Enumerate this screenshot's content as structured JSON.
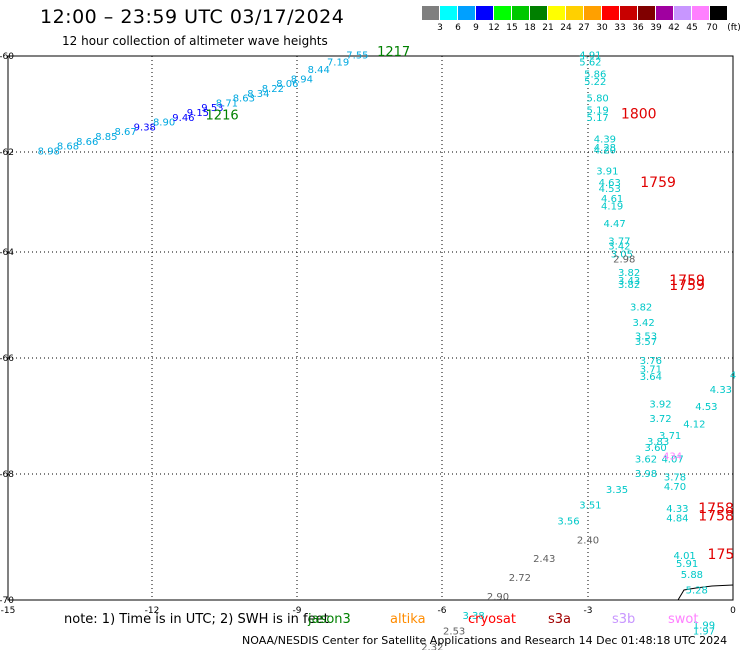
{
  "header": {
    "title": "12:00 – 23:59 UTC 03/17/2024",
    "subtitle": "12 hour collection of altimeter wave heights"
  },
  "legend": {
    "colors": [
      "#7f7f7f",
      "#00ffff",
      "#00a0ff",
      "#0000ff",
      "#00ff00",
      "#00c800",
      "#008000",
      "#ffff00",
      "#ffd000",
      "#ffa000",
      "#ff0000",
      "#c80000",
      "#800000",
      "#a000a0",
      "#c896ff",
      "#ff80ff",
      "#000000"
    ],
    "labels": [
      "3",
      "6",
      "9",
      "12",
      "15",
      "18",
      "21",
      "24",
      "27",
      "30",
      "33",
      "36",
      "39",
      "42",
      "45",
      "70"
    ],
    "unit": "(ft)"
  },
  "axes": {
    "x_ticks": [
      "-15",
      "-12",
      "-9",
      "-6",
      "-3",
      "0"
    ],
    "y_ticks": [
      "-60",
      "-62",
      "-64",
      "-66",
      "-68",
      "-70"
    ]
  },
  "note": {
    "prefix": "note: 1) Time is in UTC; 2) SWH is in feet",
    "satellites": [
      {
        "name": "jason3",
        "color": "#008000"
      },
      {
        "name": "altika",
        "color": "#ff8c00"
      },
      {
        "name": "cryosat",
        "color": "#ff0000"
      },
      {
        "name": "s3a",
        "color": "#a00000"
      },
      {
        "name": "s3b",
        "color": "#c896ff"
      },
      {
        "name": "swot",
        "color": "#ff80ff"
      }
    ]
  },
  "credit": "NOAA/NESDIS Center for Satellite Applications and Research   14 Dec 01:48:18 UTC 2024",
  "map": {
    "coast_color": "#000000",
    "track_colors": {
      "cyan": "#00c8c8",
      "teal": "#00a8e0",
      "blue": "#0000ff",
      "gray": "#606060",
      "pink": "#ff80ff",
      "green": "#008000",
      "red": "#e00000"
    }
  },
  "chart_data": {
    "type": "scatter",
    "xlim": [
      -15,
      0
    ],
    "ylim": [
      -70,
      -60
    ],
    "labels": [
      {
        "t": "8.98",
        "c": "teal",
        "lon": -14.15,
        "lat": -62.05
      },
      {
        "t": "8.68",
        "c": "teal",
        "lon": -13.75,
        "lat": -61.95
      },
      {
        "t": "8.66",
        "c": "teal",
        "lon": -13.35,
        "lat": -61.85
      },
      {
        "t": "8.85",
        "c": "teal",
        "lon": -12.95,
        "lat": -61.75
      },
      {
        "t": "8.67",
        "c": "teal",
        "lon": -12.55,
        "lat": -61.65
      },
      {
        "t": "9.38",
        "c": "blue",
        "lon": -12.15,
        "lat": -61.55
      },
      {
        "t": "8.90",
        "c": "teal",
        "lon": -11.75,
        "lat": -61.45
      },
      {
        "t": "9.46",
        "c": "blue",
        "lon": -11.35,
        "lat": -61.35
      },
      {
        "t": "9.15",
        "c": "blue",
        "lon": -11.05,
        "lat": -61.25
      },
      {
        "t": "9.53",
        "c": "blue",
        "lon": -10.75,
        "lat": -61.15
      },
      {
        "t": "8.71",
        "c": "teal",
        "lon": -10.45,
        "lat": -61.05
      },
      {
        "t": "8.63",
        "c": "teal",
        "lon": -10.1,
        "lat": -60.95
      },
      {
        "t": "8.34",
        "c": "teal",
        "lon": -9.8,
        "lat": -60.85
      },
      {
        "t": "8.22",
        "c": "teal",
        "lon": -9.5,
        "lat": -60.75
      },
      {
        "t": "8.06",
        "c": "teal",
        "lon": -9.2,
        "lat": -60.65
      },
      {
        "t": "8.94",
        "c": "teal",
        "lon": -8.9,
        "lat": -60.55
      },
      {
        "t": "8.44",
        "c": "teal",
        "lon": -8.55,
        "lat": -60.35
      },
      {
        "t": "7.19",
        "c": "teal",
        "lon": -8.15,
        "lat": -60.2
      },
      {
        "t": "7.55",
        "c": "teal",
        "lon": -7.75,
        "lat": -60.05
      },
      {
        "t": "4.91",
        "c": "cyan",
        "lon": -2.95,
        "lat": -60.05
      },
      {
        "t": "5.62",
        "c": "cyan",
        "lon": -2.95,
        "lat": -60.2
      },
      {
        "t": "5.86",
        "c": "cyan",
        "lon": -2.85,
        "lat": -60.45
      },
      {
        "t": "5.22",
        "c": "cyan",
        "lon": -2.85,
        "lat": -60.6
      },
      {
        "t": "5.80",
        "c": "cyan",
        "lon": -2.8,
        "lat": -60.95
      },
      {
        "t": "5.19",
        "c": "cyan",
        "lon": -2.8,
        "lat": -61.2
      },
      {
        "t": "5.17",
        "c": "cyan",
        "lon": -2.8,
        "lat": -61.35
      },
      {
        "t": "4.39",
        "c": "cyan",
        "lon": -2.65,
        "lat": -61.8
      },
      {
        "t": "4.28",
        "c": "cyan",
        "lon": -2.65,
        "lat": -61.98
      },
      {
        "t": "4.20",
        "c": "cyan",
        "lon": -2.65,
        "lat": -62.03
      },
      {
        "t": "3.91",
        "c": "cyan",
        "lon": -2.6,
        "lat": -62.45
      },
      {
        "t": "4.63",
        "c": "cyan",
        "lon": -2.55,
        "lat": -62.68
      },
      {
        "t": "4.53",
        "c": "cyan",
        "lon": -2.55,
        "lat": -62.8
      },
      {
        "t": "4.61",
        "c": "cyan",
        "lon": -2.5,
        "lat": -63.0
      },
      {
        "t": "4.19",
        "c": "cyan",
        "lon": -2.5,
        "lat": -63.15
      },
      {
        "t": "4.47",
        "c": "cyan",
        "lon": -2.45,
        "lat": -63.5
      },
      {
        "t": "3.77",
        "c": "cyan",
        "lon": -2.35,
        "lat": -63.85
      },
      {
        "t": "3.42",
        "c": "cyan",
        "lon": -2.35,
        "lat": -63.95
      },
      {
        "t": "3.05",
        "c": "cyan",
        "lon": -2.3,
        "lat": -64.1
      },
      {
        "t": "2.98",
        "c": "gray",
        "lon": -2.25,
        "lat": -64.2
      },
      {
        "t": "3.82",
        "c": "cyan",
        "lon": -2.15,
        "lat": -64.45
      },
      {
        "t": "3.43",
        "c": "cyan",
        "lon": -2.15,
        "lat": -64.6
      },
      {
        "t": "3.82",
        "c": "cyan",
        "lon": -2.15,
        "lat": -64.68
      },
      {
        "t": "3.82",
        "c": "cyan",
        "lon": -1.9,
        "lat": -65.1
      },
      {
        "t": "3.42",
        "c": "cyan",
        "lon": -1.85,
        "lat": -65.4
      },
      {
        "t": "3.53",
        "c": "cyan",
        "lon": -1.8,
        "lat": -65.65
      },
      {
        "t": "3.57",
        "c": "cyan",
        "lon": -1.8,
        "lat": -65.75
      },
      {
        "t": "3.76",
        "c": "cyan",
        "lon": -1.7,
        "lat": -66.1
      },
      {
        "t": "3.71",
        "c": "cyan",
        "lon": -1.7,
        "lat": -66.25
      },
      {
        "t": "3.64",
        "c": "cyan",
        "lon": -1.7,
        "lat": -66.38
      },
      {
        "t": "3.92",
        "c": "cyan",
        "lon": -1.5,
        "lat": -66.85
      },
      {
        "t": "3.72",
        "c": "cyan",
        "lon": -1.5,
        "lat": -67.1
      },
      {
        "t": "3.71",
        "c": "cyan",
        "lon": -1.3,
        "lat": -67.4
      },
      {
        "t": "3.83",
        "c": "cyan",
        "lon": -1.55,
        "lat": -67.5
      },
      {
        "t": "3.60",
        "c": "cyan",
        "lon": -1.6,
        "lat": -67.6
      },
      {
        "t": "3.62",
        "c": "cyan",
        "lon": -1.8,
        "lat": -67.8
      },
      {
        "t": "4.07",
        "c": "cyan",
        "lon": -1.25,
        "lat": -67.8
      },
      {
        "t": "3.98",
        "c": "cyan",
        "lon": -1.8,
        "lat": -68.05
      },
      {
        "t": "3.78",
        "c": "cyan",
        "lon": -1.2,
        "lat": -68.1
      },
      {
        "t": "4.70",
        "c": "cyan",
        "lon": -1.2,
        "lat": -68.25
      },
      {
        "t": "3.35",
        "c": "cyan",
        "lon": -2.4,
        "lat": -68.3
      },
      {
        "t": "3.51",
        "c": "cyan",
        "lon": -2.95,
        "lat": -68.55
      },
      {
        "t": "3.56",
        "c": "cyan",
        "lon": -3.4,
        "lat": -68.8
      },
      {
        "t": "4.33",
        "c": "cyan",
        "lon": -1.15,
        "lat": -68.6
      },
      {
        "t": "4.84",
        "c": "cyan",
        "lon": -1.15,
        "lat": -68.75
      },
      {
        "t": "4.12",
        "c": "cyan",
        "lon": -0.8,
        "lat": -67.2
      },
      {
        "t": "4.53",
        "c": "cyan",
        "lon": -0.55,
        "lat": -66.9
      },
      {
        "t": "4.33",
        "c": "cyan",
        "lon": -0.25,
        "lat": -66.6
      },
      {
        "t": "4",
        "c": "cyan",
        "lon": 0.0,
        "lat": -66.35
      },
      {
        "t": "4.01",
        "c": "cyan",
        "lon": -1.0,
        "lat": -69.35
      },
      {
        "t": "5.91",
        "c": "cyan",
        "lon": -0.95,
        "lat": -69.48
      },
      {
        "t": "5.88",
        "c": "cyan",
        "lon": -0.85,
        "lat": -69.65
      },
      {
        "t": "5.28",
        "c": "cyan",
        "lon": -0.75,
        "lat": -69.9
      },
      {
        "t": "1.99",
        "c": "cyan",
        "lon": -0.6,
        "lat": -70.45
      },
      {
        "t": "1.97",
        "c": "cyan",
        "lon": -0.6,
        "lat": -70.55
      },
      {
        "t": "2.40",
        "c": "gray",
        "lon": -3.0,
        "lat": -69.1
      },
      {
        "t": "2.43",
        "c": "gray",
        "lon": -3.9,
        "lat": -69.4
      },
      {
        "t": "2.72",
        "c": "gray",
        "lon": -4.4,
        "lat": -69.7
      },
      {
        "t": "2.90",
        "c": "gray",
        "lon": -4.85,
        "lat": -70.0
      },
      {
        "t": "3.38",
        "c": "cyan",
        "lon": -5.35,
        "lat": -70.3
      },
      {
        "t": "2.53",
        "c": "gray",
        "lon": -5.75,
        "lat": -70.55
      },
      {
        "t": "2.32",
        "c": "gray",
        "lon": -6.2,
        "lat": -70.8
      },
      {
        "t": "434",
        "c": "pink",
        "lon": -1.25,
        "lat": -67.75
      }
    ],
    "passes": [
      {
        "t": "1217",
        "c": "green",
        "lon": -7.0,
        "lat": -60.0,
        "size": 13
      },
      {
        "t": "1216",
        "c": "green",
        "lon": -10.55,
        "lat": -61.32,
        "size": 13
      },
      {
        "t": "1800",
        "c": "red",
        "lon": -1.95,
        "lat": -61.3,
        "size": 14
      },
      {
        "t": "1759",
        "c": "red",
        "lon": -1.55,
        "lat": -62.7,
        "size": 14
      },
      {
        "t": "1759",
        "c": "red",
        "lon": -0.95,
        "lat": -64.62,
        "size": 14
      },
      {
        "t": "1759",
        "c": "red",
        "lon": -0.95,
        "lat": -64.72,
        "size": 14
      },
      {
        "t": "1758",
        "c": "red",
        "lon": -0.35,
        "lat": -68.62,
        "size": 14
      },
      {
        "t": "1758",
        "c": "red",
        "lon": -0.35,
        "lat": -68.74,
        "size": 14
      },
      {
        "t": "175",
        "c": "red",
        "lon": -0.25,
        "lat": -69.35,
        "size": 14
      }
    ]
  }
}
